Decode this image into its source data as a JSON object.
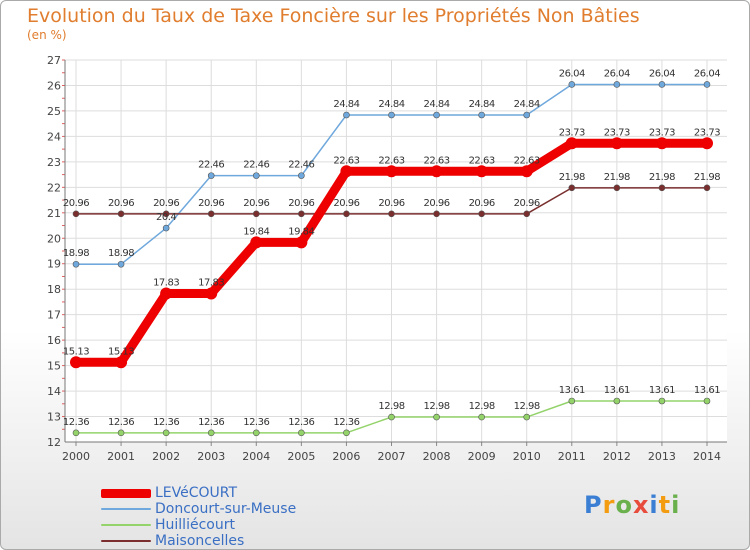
{
  "chart_data": {
    "type": "line",
    "title": "Evolution du Taux de Taxe Foncière sur les Propriétés Non Bâties",
    "subtitle": "(en %)",
    "xlabel": "",
    "ylabel": "",
    "ylim": [
      12,
      27
    ],
    "yticks": [
      12,
      13,
      14,
      15,
      16,
      17,
      18,
      19,
      20,
      21,
      22,
      23,
      24,
      25,
      26,
      27
    ],
    "grid": true,
    "legend_position": "bottom-left",
    "x": [
      "2000",
      "2001",
      "2002",
      "2003",
      "2004",
      "2005",
      "2006",
      "2007",
      "2008",
      "2009",
      "2010",
      "2011",
      "2012",
      "2013",
      "2014"
    ],
    "series": [
      {
        "name": "LEVéCOURT",
        "color": "#ee0000",
        "values": [
          15.13,
          15.13,
          17.83,
          17.83,
          19.84,
          19.84,
          22.63,
          22.63,
          22.63,
          22.63,
          22.63,
          23.73,
          23.73,
          23.73,
          23.73
        ],
        "labels": [
          "15.13",
          "15.13",
          "17.83",
          "17.83",
          "19.84",
          "19.84",
          "22.63",
          "22.63",
          "22.63",
          "22.63",
          "22.63",
          "23.73",
          "23.73",
          "23.73",
          "23.73"
        ]
      },
      {
        "name": "Doncourt-sur-Meuse",
        "color": "#6fa8dc",
        "values": [
          18.98,
          18.98,
          20.4,
          22.46,
          22.46,
          22.46,
          24.84,
          24.84,
          24.84,
          24.84,
          24.84,
          26.04,
          26.04,
          26.04,
          26.04
        ],
        "labels": [
          "18.98",
          "18.98",
          "20.4",
          "22.46",
          "22.46",
          "22.46",
          "24.84",
          "24.84",
          "24.84",
          "24.84",
          "24.84",
          "26.04",
          "26.04",
          "26.04",
          "26.04"
        ]
      },
      {
        "name": "Huilliécourt",
        "color": "#93d36a",
        "values": [
          12.36,
          12.36,
          12.36,
          12.36,
          12.36,
          12.36,
          12.36,
          12.98,
          12.98,
          12.98,
          12.98,
          13.61,
          13.61,
          13.61,
          13.61
        ],
        "labels": [
          "12.36",
          "12.36",
          "12.36",
          "12.36",
          "12.36",
          "12.36",
          "12.36",
          "12.98",
          "12.98",
          "12.98",
          "12.98",
          "13.61",
          "13.61",
          "13.61",
          "13.61"
        ]
      },
      {
        "name": "Maisoncelles",
        "color": "#7a2e2e",
        "values": [
          20.96,
          20.96,
          20.96,
          20.96,
          20.96,
          20.96,
          20.96,
          20.96,
          20.96,
          20.96,
          20.96,
          21.98,
          21.98,
          21.98,
          21.98
        ],
        "labels": [
          "20.96",
          "20.96",
          "20.96",
          "20.96",
          "20.96",
          "20.96",
          "20.96",
          "20.96",
          "20.96",
          "20.96",
          "20.96",
          "21.98",
          "21.98",
          "21.98",
          "21.98"
        ]
      }
    ]
  },
  "logo": {
    "letters": [
      "P",
      "r",
      "o",
      "x",
      "i",
      "t",
      "i"
    ],
    "colors": [
      "#3b7fd4",
      "#f39c12",
      "#6ab04c",
      "#e74c3c",
      "#3b7fd4",
      "#f39c12",
      "#6ab04c"
    ]
  }
}
